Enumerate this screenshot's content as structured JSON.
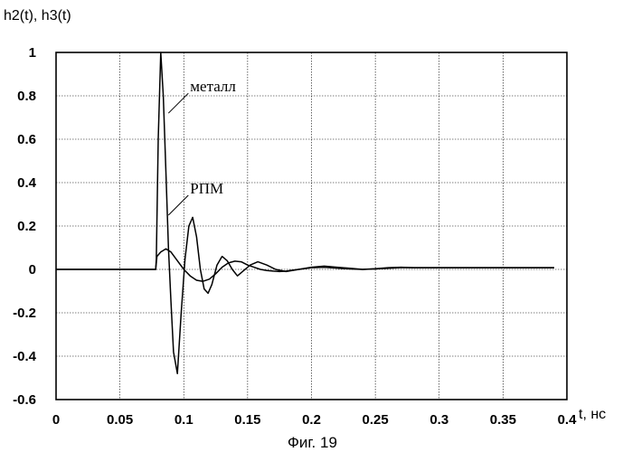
{
  "chart_data": {
    "type": "line",
    "ylabel": "h2(t), h3(t)",
    "xlabel": "t, нс",
    "caption": "Фиг. 19",
    "xlim": [
      0,
      0.4
    ],
    "ylim": [
      -0.6,
      1
    ],
    "grid": true,
    "x_ticks": [
      "0",
      "0.05",
      "0.1",
      "0.15",
      "0.2",
      "0.25",
      "0.3",
      "0.35",
      "0.4"
    ],
    "y_ticks": [
      "1",
      "0.8",
      "0.6",
      "0.4",
      "0.2",
      "0",
      "-0.2",
      "-0.4",
      "-0.6"
    ],
    "series": [
      {
        "name": "металл",
        "points": [
          [
            0,
            0
          ],
          [
            0.078,
            0
          ],
          [
            0.0785,
            0.05
          ],
          [
            0.08,
            0.6
          ],
          [
            0.082,
            1.0
          ],
          [
            0.084,
            0.8
          ],
          [
            0.086,
            0.45
          ],
          [
            0.088,
            0.1
          ],
          [
            0.09,
            -0.15
          ],
          [
            0.092,
            -0.38
          ],
          [
            0.095,
            -0.48
          ],
          [
            0.098,
            -0.2
          ],
          [
            0.101,
            0.05
          ],
          [
            0.104,
            0.2
          ],
          [
            0.107,
            0.24
          ],
          [
            0.11,
            0.15
          ],
          [
            0.113,
            0.0
          ],
          [
            0.116,
            -0.09
          ],
          [
            0.119,
            -0.11
          ],
          [
            0.122,
            -0.07
          ],
          [
            0.126,
            0.02
          ],
          [
            0.13,
            0.06
          ],
          [
            0.134,
            0.04
          ],
          [
            0.138,
            0.0
          ],
          [
            0.142,
            -0.03
          ],
          [
            0.146,
            -0.01
          ],
          [
            0.152,
            0.02
          ],
          [
            0.158,
            0.035
          ],
          [
            0.165,
            0.02
          ],
          [
            0.172,
            0.0
          ],
          [
            0.18,
            -0.01
          ],
          [
            0.19,
            0.0
          ],
          [
            0.2,
            0.01
          ],
          [
            0.21,
            0.015
          ],
          [
            0.22,
            0.01
          ],
          [
            0.23,
            0.005
          ],
          [
            0.24,
            0.0
          ],
          [
            0.25,
            0.003
          ],
          [
            0.26,
            0.008
          ],
          [
            0.27,
            0.01
          ],
          [
            0.28,
            0.008
          ],
          [
            0.3,
            0.008
          ],
          [
            0.39,
            0.008
          ]
        ]
      },
      {
        "name": "РПМ",
        "points": [
          [
            0,
            0
          ],
          [
            0.078,
            0
          ],
          [
            0.079,
            0.06
          ],
          [
            0.082,
            0.08
          ],
          [
            0.086,
            0.095
          ],
          [
            0.09,
            0.08
          ],
          [
            0.095,
            0.04
          ],
          [
            0.1,
            0.0
          ],
          [
            0.105,
            -0.03
          ],
          [
            0.11,
            -0.05
          ],
          [
            0.115,
            -0.055
          ],
          [
            0.12,
            -0.045
          ],
          [
            0.125,
            -0.02
          ],
          [
            0.13,
            0.01
          ],
          [
            0.135,
            0.03
          ],
          [
            0.14,
            0.038
          ],
          [
            0.145,
            0.035
          ],
          [
            0.15,
            0.02
          ],
          [
            0.155,
            0.01
          ],
          [
            0.16,
            0.0
          ],
          [
            0.165,
            -0.005
          ],
          [
            0.17,
            -0.008
          ],
          [
            0.175,
            -0.01
          ],
          [
            0.18,
            -0.008
          ],
          [
            0.19,
            0.0
          ],
          [
            0.2,
            0.008
          ],
          [
            0.21,
            0.01
          ],
          [
            0.22,
            0.006
          ],
          [
            0.23,
            0.002
          ],
          [
            0.24,
            0.0
          ],
          [
            0.25,
            0.002
          ],
          [
            0.26,
            0.005
          ],
          [
            0.27,
            0.008
          ],
          [
            0.3,
            0.008
          ],
          [
            0.39,
            0.008
          ]
        ]
      }
    ],
    "annotations": [
      {
        "text": "металл",
        "at": [
          0.088,
          0.72
        ]
      },
      {
        "text": "РПМ",
        "at": [
          0.088,
          0.25
        ]
      }
    ]
  }
}
